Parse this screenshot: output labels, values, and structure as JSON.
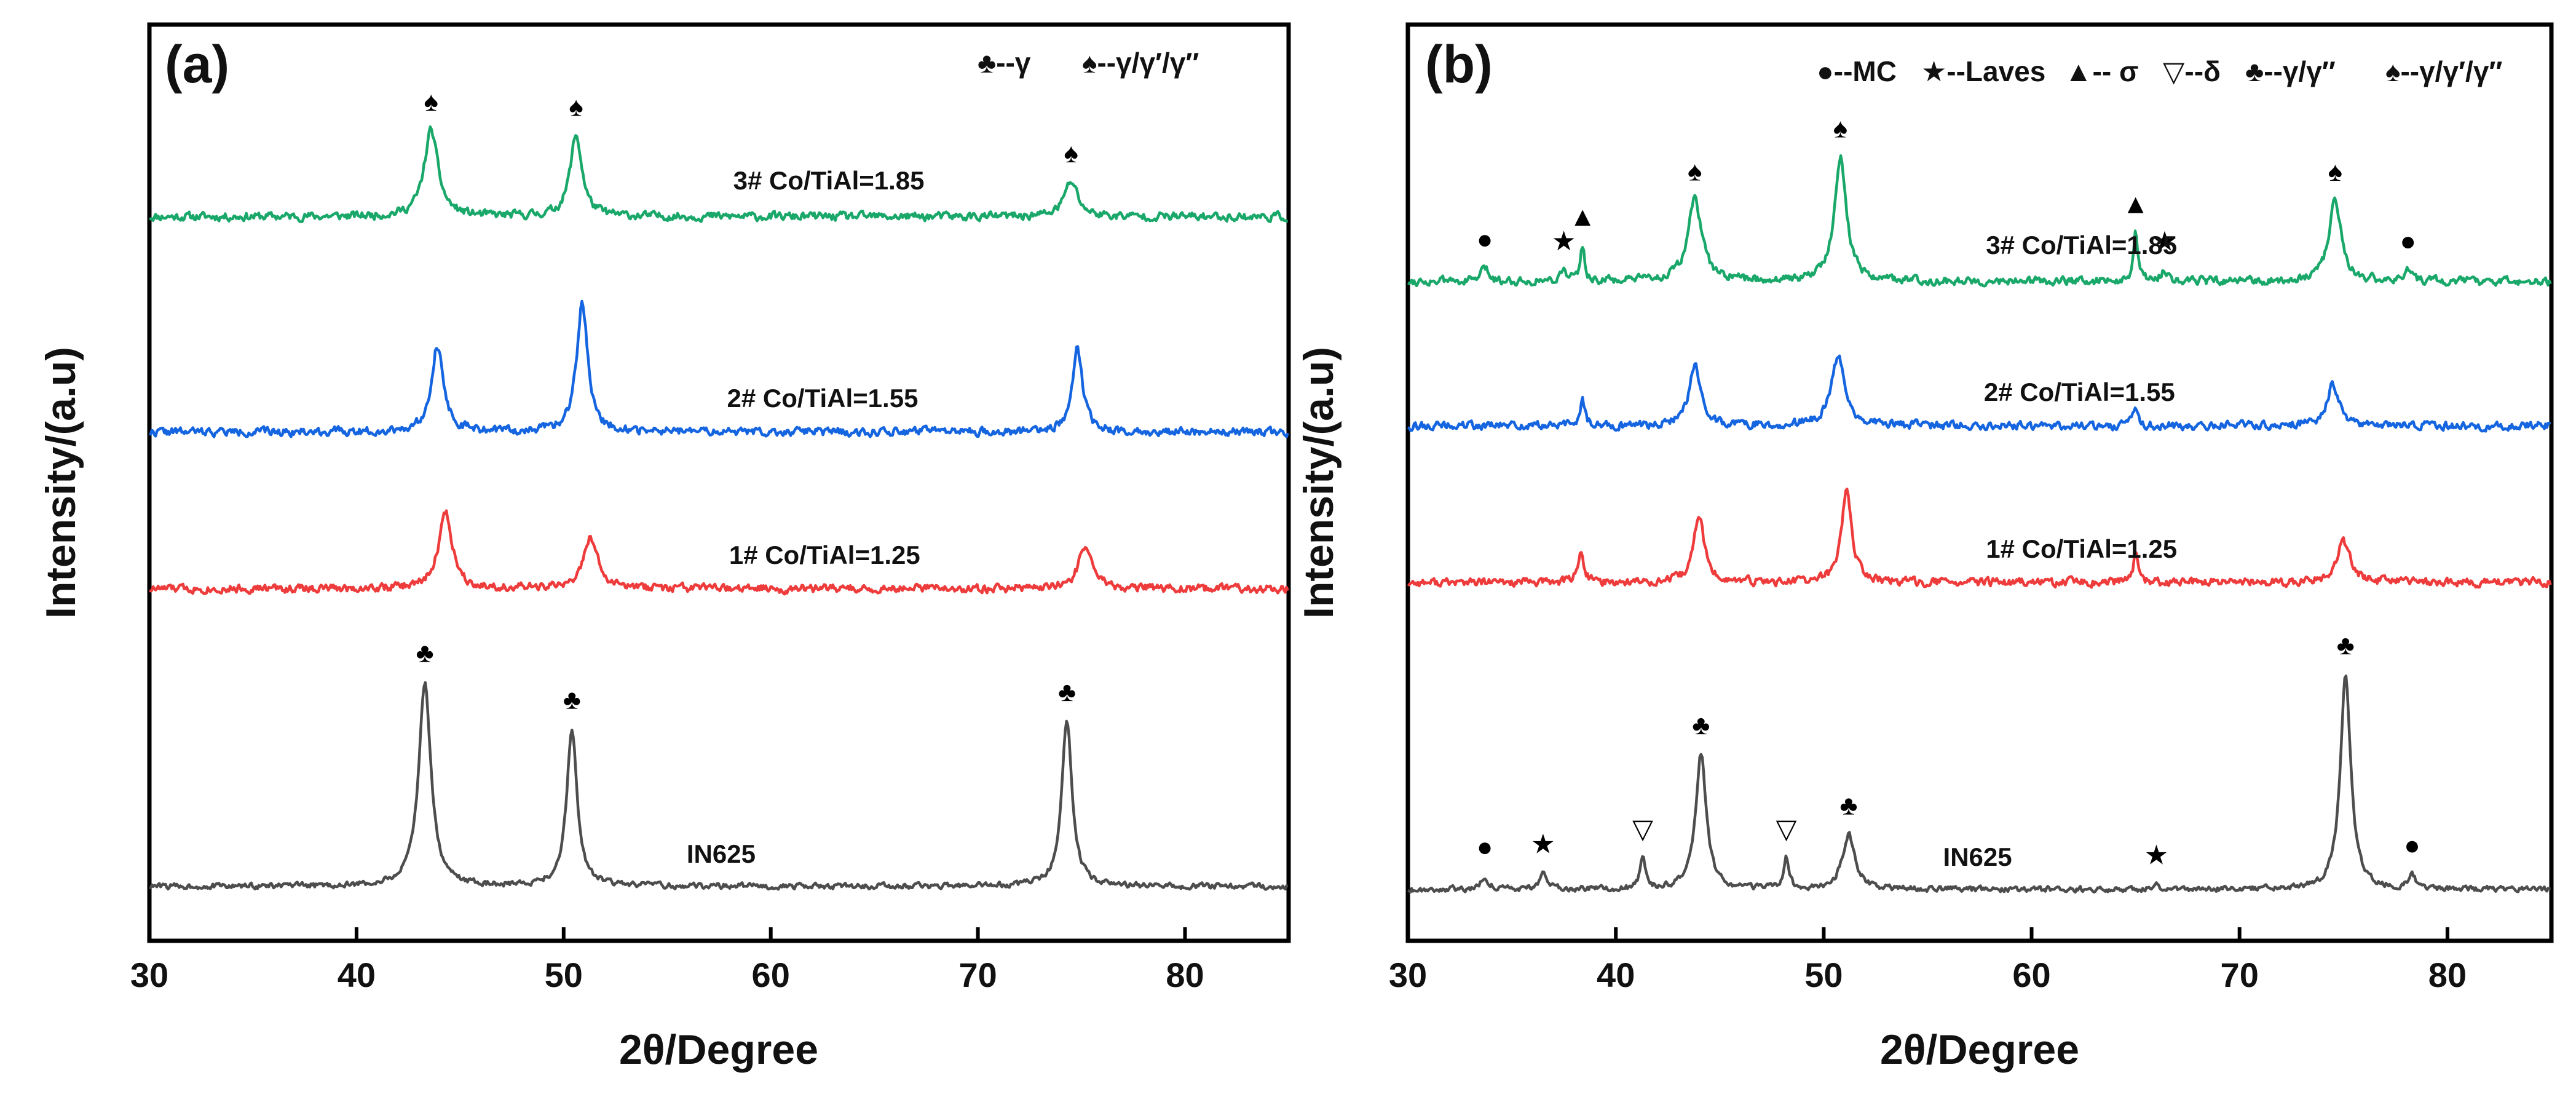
{
  "colors": {
    "green": "#1aa86a",
    "blue": "#1565e0",
    "red": "#ee3b3b",
    "gray": "#4d4d4d",
    "axis": "#000000"
  },
  "chart_data": [
    {
      "type": "line",
      "panel_label": "(a)",
      "xlabel": "2θ/Degree",
      "ylabel": "Intensity/(a.u)",
      "xlim": [
        30,
        85
      ],
      "xticks": [
        30,
        40,
        50,
        60,
        70,
        80
      ],
      "xtick_labels": [
        "30",
        "40",
        "50",
        "60",
        "70",
        "80"
      ],
      "legend": [
        {
          "symbol": "♣",
          "text": "--γ"
        },
        {
          "symbol": "♠",
          "text": "--γ/γ′/γ″"
        }
      ],
      "series": [
        {
          "name": "3# Co/TiAl=1.85",
          "color_key": "green",
          "label_x": 62.8,
          "label_offset": 62,
          "baseline": 0.2,
          "noise": 0.12,
          "seed": 11,
          "peaks": [
            {
              "x": 43.6,
              "h": 1.6,
              "w": 0.4
            },
            {
              "x": 50.6,
              "h": 1.5,
              "w": 0.35
            },
            {
              "x": 74.5,
              "h": 0.65,
              "w": 0.4
            }
          ],
          "markers": [
            {
              "x": 43.6,
              "symbol": "♠"
            },
            {
              "x": 50.6,
              "symbol": "♠"
            },
            {
              "x": 74.5,
              "symbol": "♠"
            }
          ]
        },
        {
          "name": "2# Co/TiAl=1.55",
          "color_key": "blue",
          "label_x": 62.5,
          "label_offset": 58,
          "baseline": 0.2,
          "noise": 0.12,
          "seed": 22,
          "peaks": [
            {
              "x": 43.9,
              "h": 1.6,
              "w": 0.35
            },
            {
              "x": 50.9,
              "h": 2.4,
              "w": 0.32
            },
            {
              "x": 74.8,
              "h": 1.55,
              "w": 0.3
            }
          ],
          "markers": []
        },
        {
          "name": "1# Co/TiAl=1.25",
          "color_key": "red",
          "label_x": 62.6,
          "label_offset": 58,
          "baseline": 0.2,
          "noise": 0.12,
          "seed": 33,
          "peaks": [
            {
              "x": 44.3,
              "h": 1.4,
              "w": 0.4
            },
            {
              "x": 51.3,
              "h": 0.95,
              "w": 0.4
            },
            {
              "x": 75.2,
              "h": 0.8,
              "w": 0.4
            }
          ],
          "markers": []
        },
        {
          "name": "IN625",
          "color_key": "gray",
          "label_x": 57.6,
          "label_offset": 52,
          "baseline": 0.15,
          "noise": 0.08,
          "seed": 44,
          "peaks": [
            {
              "x": 43.3,
              "h": 3.7,
              "w": 0.35
            },
            {
              "x": 50.4,
              "h": 2.85,
              "w": 0.3
            },
            {
              "x": 74.3,
              "h": 3.0,
              "w": 0.3
            }
          ],
          "markers": [
            {
              "x": 43.3,
              "symbol": "♣"
            },
            {
              "x": 50.4,
              "symbol": "♣"
            },
            {
              "x": 74.3,
              "symbol": "♣"
            }
          ]
        }
      ]
    },
    {
      "type": "line",
      "panel_label": "(b)",
      "xlabel": "2θ/Degree",
      "ylabel": "Intensity/(a.u)",
      "xlim": [
        30,
        85
      ],
      "xticks": [
        30,
        40,
        50,
        60,
        70,
        80
      ],
      "xtick_labels": [
        "30",
        "40",
        "50",
        "60",
        "70",
        "80"
      ],
      "legend": [
        {
          "symbol": "●",
          "text": "--MC"
        },
        {
          "symbol": "★",
          "text": "--Laves"
        },
        {
          "symbol": "▲",
          "text": "-- σ"
        },
        {
          "symbol": "▽",
          "text": "--δ"
        },
        {
          "symbol": "♣",
          "text": "--γ/γ″"
        },
        {
          "symbol": "♠",
          "text": "--γ/γ′/γ″"
        }
      ],
      "series": [
        {
          "name": "3# Co/TiAl=1.85",
          "color_key": "green",
          "label_x": 62.4,
          "label_offset": 62,
          "baseline": 0.2,
          "noise": 0.12,
          "seed": 55,
          "peaks": [
            {
              "x": 33.7,
              "h": 0.25,
              "w": 0.2
            },
            {
              "x": 37.5,
              "h": 0.2,
              "w": 0.2
            },
            {
              "x": 38.4,
              "h": 0.65,
              "w": 0.12
            },
            {
              "x": 43.8,
              "h": 1.5,
              "w": 0.4
            },
            {
              "x": 50.8,
              "h": 2.3,
              "w": 0.35
            },
            {
              "x": 65.0,
              "h": 0.9,
              "w": 0.12
            },
            {
              "x": 66.4,
              "h": 0.2,
              "w": 0.2
            },
            {
              "x": 74.6,
              "h": 1.5,
              "w": 0.35
            },
            {
              "x": 78.1,
              "h": 0.2,
              "w": 0.2
            }
          ],
          "markers": [
            {
              "x": 33.7,
              "symbol": "●"
            },
            {
              "x": 37.5,
              "symbol": "★"
            },
            {
              "x": 38.4,
              "symbol": "▲"
            },
            {
              "x": 43.8,
              "symbol": "♠"
            },
            {
              "x": 50.8,
              "symbol": "♠"
            },
            {
              "x": 65.0,
              "symbol": "▲"
            },
            {
              "x": 66.4,
              "symbol": "★"
            },
            {
              "x": 74.6,
              "symbol": "♠"
            },
            {
              "x": 78.1,
              "symbol": "●"
            }
          ]
        },
        {
          "name": "2# Co/TiAl=1.55",
          "color_key": "blue",
          "label_x": 62.3,
          "label_offset": 58,
          "baseline": 0.2,
          "noise": 0.12,
          "seed": 66,
          "peaks": [
            {
              "x": 38.4,
              "h": 0.45,
              "w": 0.15
            },
            {
              "x": 43.8,
              "h": 1.1,
              "w": 0.35
            },
            {
              "x": 50.7,
              "h": 1.25,
              "w": 0.4
            },
            {
              "x": 65.0,
              "h": 0.3,
              "w": 0.15
            },
            {
              "x": 74.5,
              "h": 0.75,
              "w": 0.35
            }
          ],
          "markers": []
        },
        {
          "name": "1# Co/TiAl=1.25",
          "color_key": "red",
          "label_x": 62.4,
          "label_offset": 58,
          "baseline": 0.2,
          "noise": 0.12,
          "seed": 77,
          "peaks": [
            {
              "x": 38.3,
              "h": 0.5,
              "w": 0.2
            },
            {
              "x": 44.0,
              "h": 1.25,
              "w": 0.3
            },
            {
              "x": 51.1,
              "h": 1.7,
              "w": 0.3
            },
            {
              "x": 65.0,
              "h": 0.6,
              "w": 0.12
            },
            {
              "x": 75.0,
              "h": 0.75,
              "w": 0.4
            }
          ],
          "markers": []
        },
        {
          "name": "IN625",
          "color_key": "gray",
          "label_x": 57.4,
          "label_offset": 52,
          "baseline": 0.15,
          "noise": 0.08,
          "seed": 88,
          "peaks": [
            {
              "x": 33.7,
              "h": 0.25,
              "w": 0.2
            },
            {
              "x": 36.5,
              "h": 0.3,
              "w": 0.2
            },
            {
              "x": 41.3,
              "h": 0.55,
              "w": 0.15
            },
            {
              "x": 44.1,
              "h": 2.45,
              "w": 0.3
            },
            {
              "x": 48.2,
              "h": 0.55,
              "w": 0.15
            },
            {
              "x": 51.2,
              "h": 1.0,
              "w": 0.35
            },
            {
              "x": 66.0,
              "h": 0.1,
              "w": 0.2
            },
            {
              "x": 75.1,
              "h": 3.9,
              "w": 0.3
            },
            {
              "x": 78.3,
              "h": 0.25,
              "w": 0.2
            }
          ],
          "markers": [
            {
              "x": 33.7,
              "symbol": "●"
            },
            {
              "x": 36.5,
              "symbol": "★"
            },
            {
              "x": 41.3,
              "symbol": "▽"
            },
            {
              "x": 44.1,
              "symbol": "♣"
            },
            {
              "x": 48.2,
              "symbol": "▽"
            },
            {
              "x": 51.2,
              "symbol": "♣"
            },
            {
              "x": 66.0,
              "symbol": "★"
            },
            {
              "x": 75.1,
              "symbol": "♣"
            },
            {
              "x": 78.3,
              "symbol": "●"
            }
          ]
        }
      ]
    }
  ]
}
